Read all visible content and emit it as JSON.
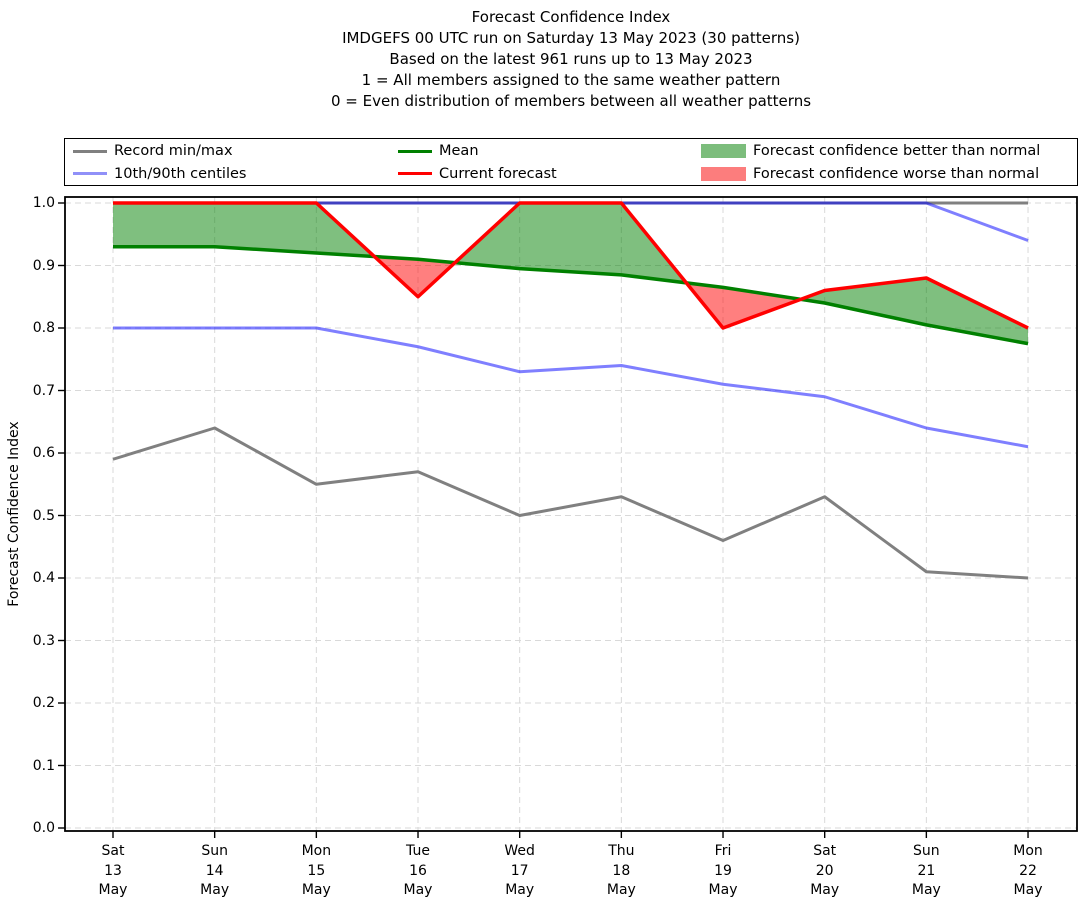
{
  "title": {
    "lines": [
      "Forecast Confidence Index",
      "IMDGEFS 00 UTC run on Saturday 13 May 2023 (30 patterns)",
      "Based on the latest 961 runs up to 13 May 2023",
      "1 = All members assigned to the same weather pattern",
      "0 = Even distribution of members between all weather patterns"
    ]
  },
  "legend": {
    "items": [
      {
        "label": "Record min/max",
        "swatch": "line",
        "color": "#808080"
      },
      {
        "label": "10th/90th centiles",
        "swatch": "line",
        "color": "#9090f8"
      },
      {
        "label": "Mean",
        "swatch": "line",
        "color": "#008000"
      },
      {
        "label": "Current forecast",
        "swatch": "line",
        "color": "#ff0000"
      },
      {
        "label": "Forecast confidence better than normal",
        "swatch": "patch",
        "color": "#7cbd7c"
      },
      {
        "label": "Forecast confidence worse than normal",
        "swatch": "patch",
        "color": "#fc7d7d"
      }
    ]
  },
  "chart_data": {
    "type": "line",
    "title": "Forecast Confidence Index",
    "xlabel": "",
    "ylabel": "Forecast Confidence Index",
    "ylim": [
      0.0,
      1.0
    ],
    "grid": "dashed-both-axes",
    "legend_position": "top",
    "yticks": [
      "1.0",
      "0.9",
      "0.8",
      "0.7",
      "0.6",
      "0.5",
      "0.4",
      "0.3",
      "0.2",
      "0.1",
      "0.0"
    ],
    "categories": [
      "Sat 13 May",
      "Sun 14 May",
      "Mon 15 May",
      "Tue 16 May",
      "Wed 17 May",
      "Thu 18 May",
      "Fri 19 May",
      "Sat 20 May",
      "Sun 21 May",
      "Mon 22 May"
    ],
    "xticklabels": [
      "Sat\n13\nMay",
      "Sun\n14\nMay",
      "Mon\n15\nMay",
      "Tue\n16\nMay",
      "Wed\n17\nMay",
      "Thu\n18\nMay",
      "Fri\n19\nMay",
      "Sat\n20\nMay",
      "Sun\n21\nMay",
      "Mon\n22\nMay"
    ],
    "series": [
      {
        "name": "Record max",
        "values": [
          1.0,
          1.0,
          1.0,
          1.0,
          1.0,
          1.0,
          1.0,
          1.0,
          1.0,
          1.0
        ],
        "color": "#808080",
        "width": 3
      },
      {
        "name": "Record min",
        "values": [
          0.59,
          0.64,
          0.55,
          0.57,
          0.5,
          0.53,
          0.46,
          0.53,
          0.41,
          0.4
        ],
        "color": "#808080",
        "width": 3
      },
      {
        "name": "90th centile",
        "values": [
          1.0,
          1.0,
          1.0,
          1.0,
          1.0,
          1.0,
          1.0,
          1.0,
          1.0,
          0.94
        ],
        "color": "#0000ff",
        "opacity": 0.5,
        "width": 3
      },
      {
        "name": "10th centile",
        "values": [
          0.8,
          0.8,
          0.8,
          0.77,
          0.73,
          0.74,
          0.71,
          0.69,
          0.64,
          0.61
        ],
        "color": "#0000ff",
        "opacity": 0.5,
        "width": 3
      },
      {
        "name": "Mean",
        "values": [
          0.93,
          0.93,
          0.92,
          0.91,
          0.895,
          0.885,
          0.865,
          0.84,
          0.805,
          0.775
        ],
        "color": "#008000",
        "width": 3.5
      },
      {
        "name": "Current forecast",
        "values": [
          1.0,
          1.0,
          1.0,
          0.85,
          1.0,
          1.0,
          0.8,
          0.86,
          0.88,
          0.8
        ],
        "color": "#ff0000",
        "width": 3.5
      }
    ],
    "fill": {
      "upper_series": "Current forecast",
      "lower_series": "Mean",
      "above_color": "#008000",
      "below_color": "#ff0000",
      "opacity": 0.5,
      "above_name": "fill-confidence-better-than-normal",
      "below_name": "fill-confidence-worse-than-normal"
    }
  }
}
